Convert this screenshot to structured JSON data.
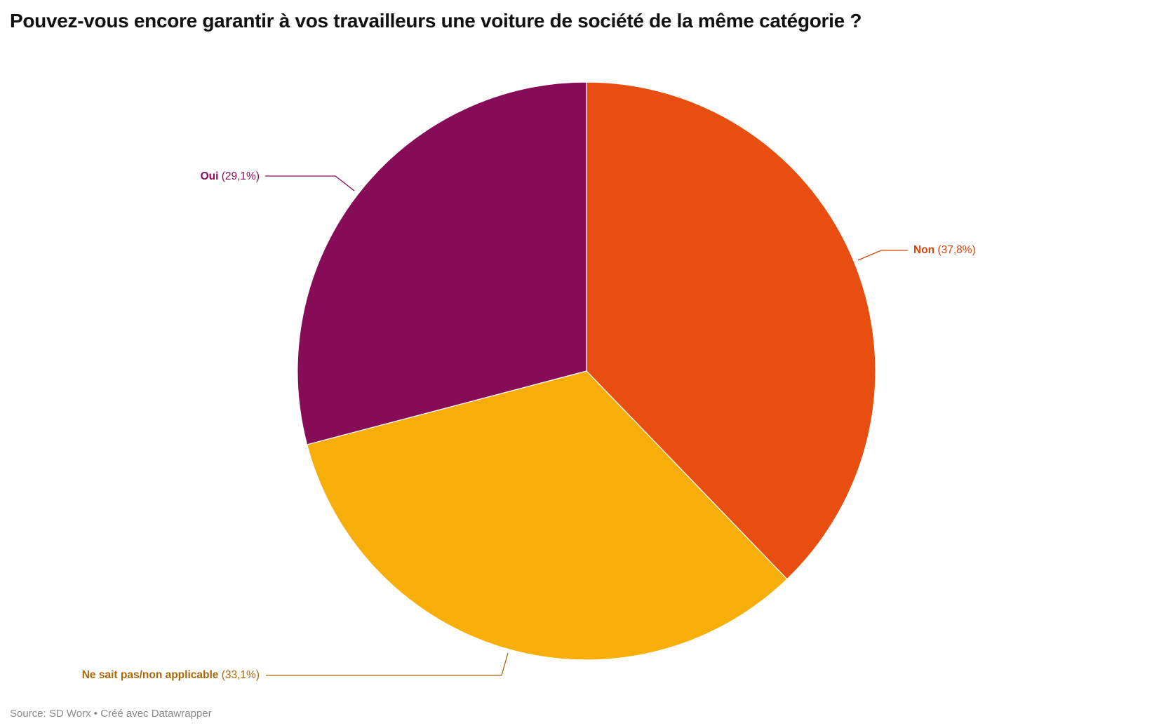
{
  "title": "Pouvez-vous encore garantir à vos travailleurs une voiture de société de la même catégorie ?",
  "footer": {
    "source": "Source: SD Worx",
    "separator": " • ",
    "credit": "Créé avec Datawrapper"
  },
  "slices": [
    {
      "label": "Non",
      "pct_text": "(37,8%)",
      "color": "#e84e10",
      "text_color": "#d8430c"
    },
    {
      "label": "Ne sait pas/non applicable",
      "pct_text": "(33,1%)",
      "color": "#f7ae08",
      "text_color": "#a8680a"
    },
    {
      "label": "Oui",
      "pct_text": "(29,1%)",
      "color": "#870c58",
      "text_color": "#870c58"
    }
  ],
  "chart_data": {
    "type": "pie",
    "title": "Pouvez-vous encore garantir à vos travailleurs une voiture de société de la même catégorie ?",
    "categories": [
      "Non",
      "Ne sait pas/non applicable",
      "Oui"
    ],
    "values": [
      37.8,
      33.1,
      29.1
    ],
    "unit": "%",
    "colors": [
      "#e84e10",
      "#f7ae08",
      "#870c58"
    ],
    "start_angle": "12 o'clock, clockwise",
    "labels": [
      "Non (37,8%)",
      "Ne sait pas/non applicable (33,1%)",
      "Oui (29,1%)"
    ],
    "source": "Source: SD Worx • Créé avec Datawrapper",
    "legend": "none (direct labels with leader lines)"
  }
}
